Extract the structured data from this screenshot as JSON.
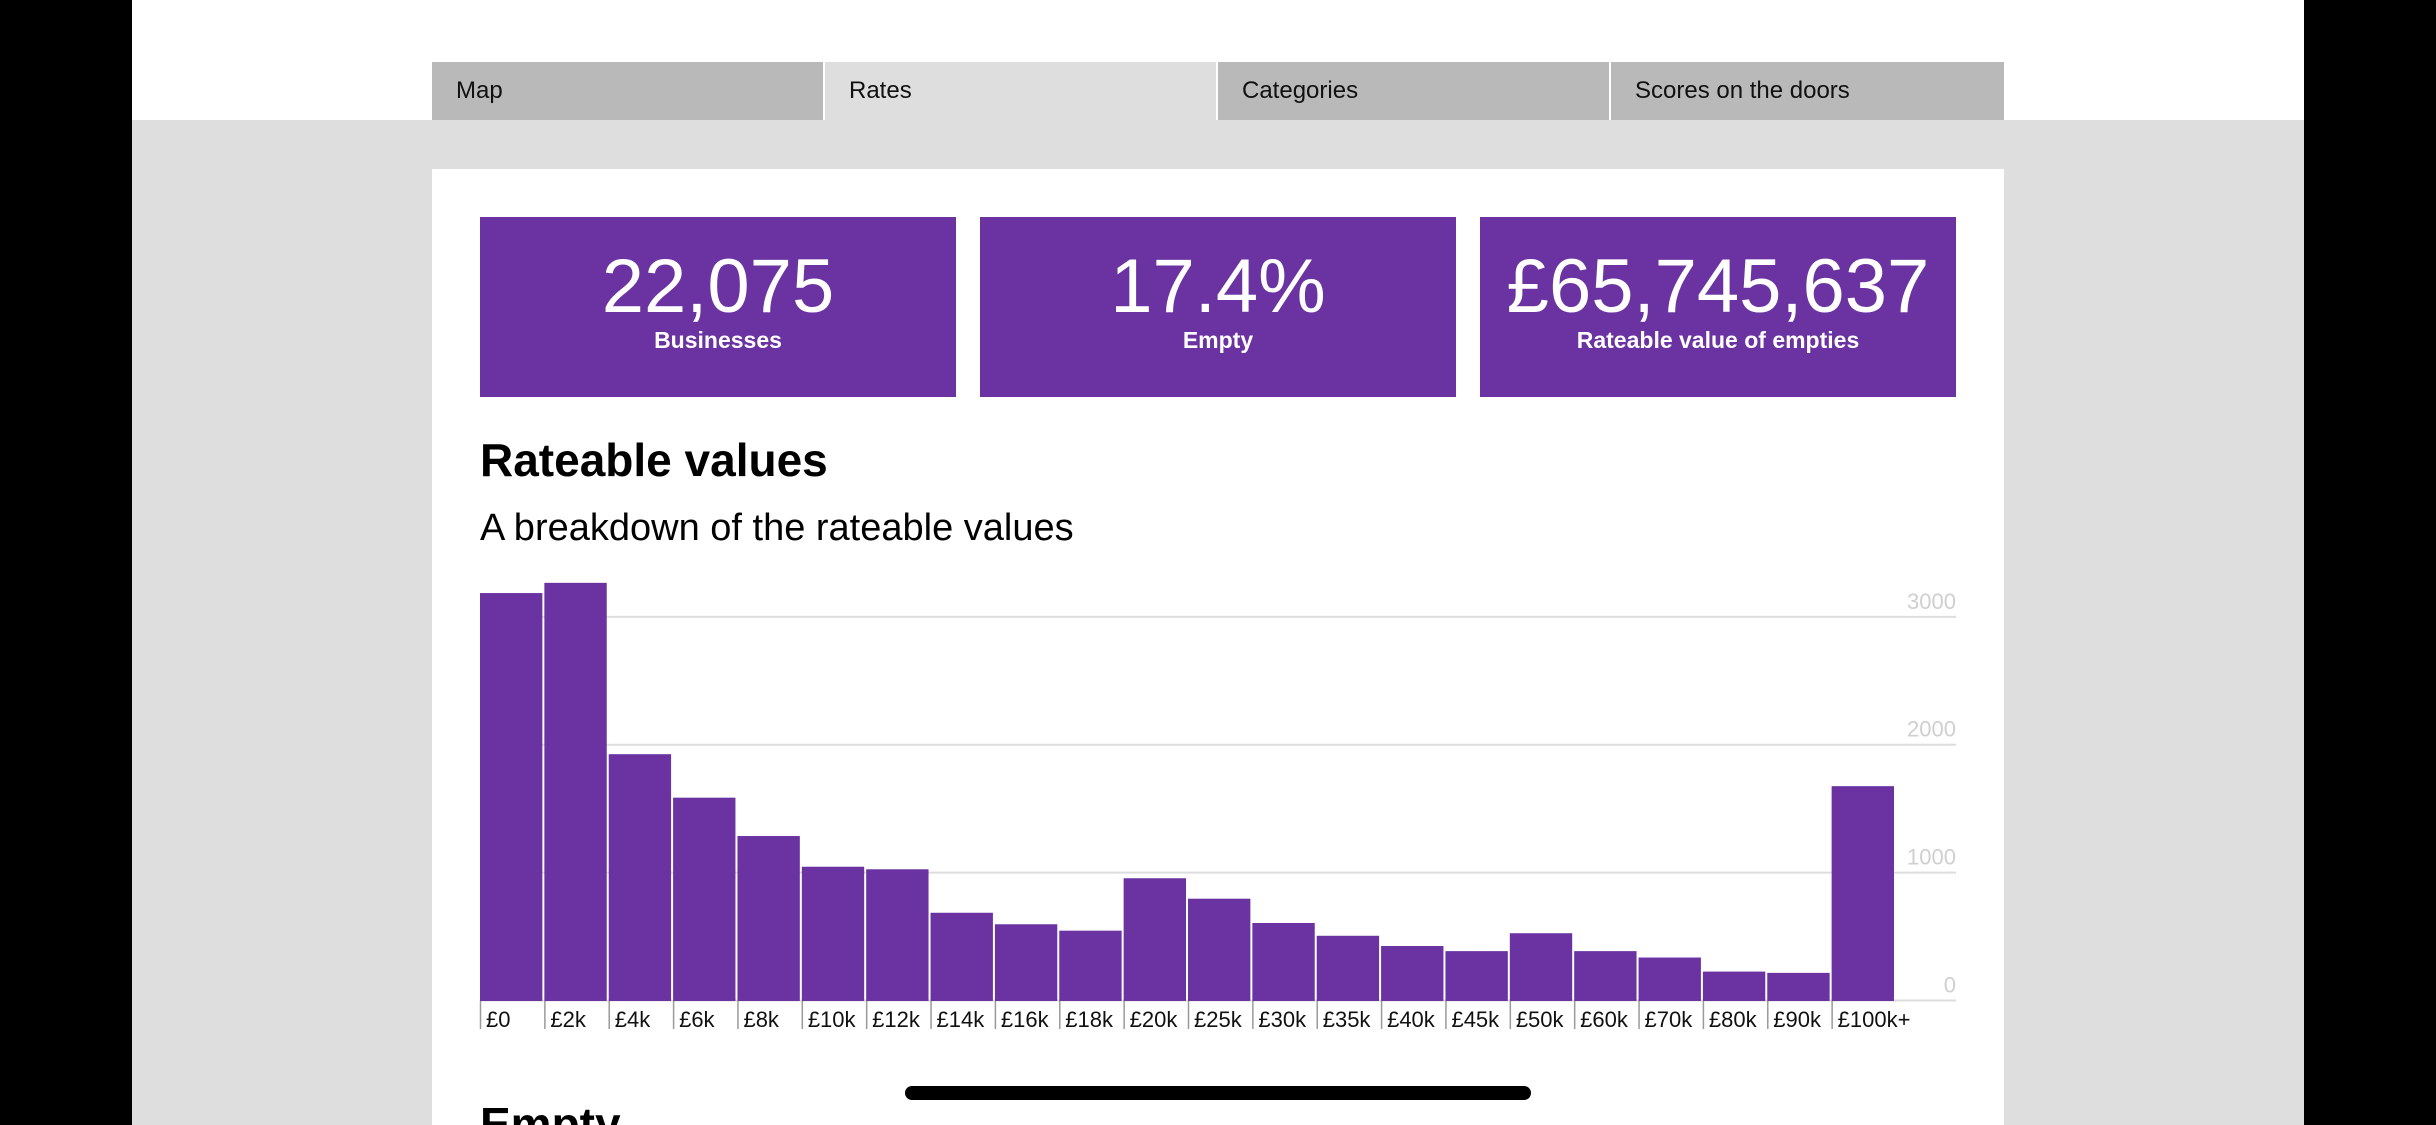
{
  "tabs": [
    {
      "label": "Map",
      "active": false
    },
    {
      "label": "Rates",
      "active": true
    },
    {
      "label": "Categories",
      "active": false
    },
    {
      "label": "Scores on the doors",
      "active": false
    }
  ],
  "stats": [
    {
      "value": "22,075",
      "label": "Businesses"
    },
    {
      "value": "17.4%",
      "label": "Empty"
    },
    {
      "value": "£65,745,637",
      "label": "Rateable value of empties"
    }
  ],
  "section": {
    "title": "Rateable values",
    "subtitle": "A breakdown of the rateable values",
    "next_title": "Empty"
  },
  "colors": {
    "bar": "#6a33a1",
    "accent": "#6a33a1"
  },
  "chart_data": {
    "type": "bar",
    "title": "Rateable values",
    "subtitle": "A breakdown of the rateable values",
    "categories": [
      "£0",
      "£2k",
      "£4k",
      "£6k",
      "£8k",
      "£10k",
      "£12k",
      "£14k",
      "£16k",
      "£18k",
      "£20k",
      "£25k",
      "£30k",
      "£35k",
      "£40k",
      "£45k",
      "£50k",
      "£60k",
      "£70k",
      "£80k",
      "£90k",
      "£100k+"
    ],
    "values": [
      3190,
      3270,
      1930,
      1590,
      1290,
      1050,
      1030,
      690,
      600,
      550,
      960,
      800,
      610,
      510,
      430,
      390,
      530,
      390,
      340,
      230,
      220,
      1680
    ],
    "yticks": [
      0,
      1000,
      2000,
      3000
    ],
    "ylim": [
      0,
      3300
    ],
    "grid": true,
    "axis_position": "right"
  }
}
